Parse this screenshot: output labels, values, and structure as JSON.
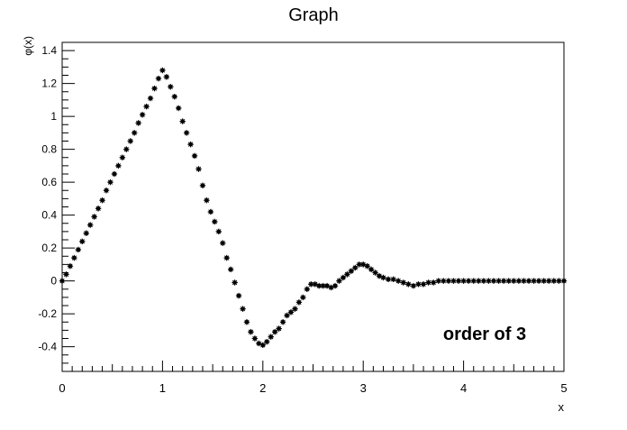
{
  "chart_data": {
    "type": "scatter",
    "title": "Graph",
    "xlabel": "x",
    "ylabel": "φ(x)",
    "xlim": [
      0,
      5
    ],
    "ylim": [
      -0.55,
      1.45
    ],
    "x_ticks": [
      0,
      1,
      2,
      3,
      4,
      5
    ],
    "x_tick_labels": [
      "0",
      "1",
      "2",
      "3",
      "4",
      "5"
    ],
    "y_ticks": [
      -0.4,
      -0.2,
      0,
      0.2,
      0.4,
      0.6,
      0.8,
      1,
      1.2,
      1.4
    ],
    "y_tick_labels": [
      "-0.4",
      "-0.2",
      "0",
      "0.2",
      "0.4",
      "0.6",
      "0.8",
      "1",
      "1.2",
      "1.4"
    ],
    "grid": false,
    "annotation": "order of 3",
    "marker_color": "#000000",
    "series": [
      {
        "points": [
          [
            0.0,
            0.0
          ],
          [
            0.04,
            0.04
          ],
          [
            0.08,
            0.09
          ],
          [
            0.12,
            0.14
          ],
          [
            0.16,
            0.19
          ],
          [
            0.2,
            0.24
          ],
          [
            0.24,
            0.29
          ],
          [
            0.28,
            0.34
          ],
          [
            0.32,
            0.39
          ],
          [
            0.36,
            0.44
          ],
          [
            0.4,
            0.49
          ],
          [
            0.44,
            0.55
          ],
          [
            0.48,
            0.6
          ],
          [
            0.52,
            0.65
          ],
          [
            0.56,
            0.7
          ],
          [
            0.6,
            0.75
          ],
          [
            0.64,
            0.8
          ],
          [
            0.68,
            0.85
          ],
          [
            0.72,
            0.9
          ],
          [
            0.76,
            0.96
          ],
          [
            0.8,
            1.01
          ],
          [
            0.84,
            1.06
          ],
          [
            0.88,
            1.11
          ],
          [
            0.92,
            1.17
          ],
          [
            0.96,
            1.23
          ],
          [
            1.0,
            1.28
          ],
          [
            1.04,
            1.24
          ],
          [
            1.08,
            1.18
          ],
          [
            1.12,
            1.12
          ],
          [
            1.16,
            1.05
          ],
          [
            1.2,
            0.97
          ],
          [
            1.24,
            0.9
          ],
          [
            1.28,
            0.83
          ],
          [
            1.32,
            0.76
          ],
          [
            1.36,
            0.68
          ],
          [
            1.4,
            0.58
          ],
          [
            1.44,
            0.49
          ],
          [
            1.48,
            0.42
          ],
          [
            1.52,
            0.36
          ],
          [
            1.56,
            0.3
          ],
          [
            1.6,
            0.23
          ],
          [
            1.64,
            0.14
          ],
          [
            1.68,
            0.07
          ],
          [
            1.72,
            -0.01
          ],
          [
            1.76,
            -0.09
          ],
          [
            1.8,
            -0.17
          ],
          [
            1.84,
            -0.25
          ],
          [
            1.88,
            -0.31
          ],
          [
            1.92,
            -0.35
          ],
          [
            1.96,
            -0.38
          ],
          [
            2.0,
            -0.39
          ],
          [
            2.04,
            -0.37
          ],
          [
            2.08,
            -0.34
          ],
          [
            2.12,
            -0.31
          ],
          [
            2.16,
            -0.29
          ],
          [
            2.2,
            -0.25
          ],
          [
            2.24,
            -0.21
          ],
          [
            2.28,
            -0.19
          ],
          [
            2.32,
            -0.17
          ],
          [
            2.36,
            -0.13
          ],
          [
            2.4,
            -0.1
          ],
          [
            2.44,
            -0.05
          ],
          [
            2.48,
            -0.02
          ],
          [
            2.52,
            -0.02
          ],
          [
            2.56,
            -0.03
          ],
          [
            2.6,
            -0.03
          ],
          [
            2.64,
            -0.03
          ],
          [
            2.68,
            -0.04
          ],
          [
            2.72,
            -0.03
          ],
          [
            2.76,
            0.0
          ],
          [
            2.8,
            0.02
          ],
          [
            2.84,
            0.04
          ],
          [
            2.88,
            0.06
          ],
          [
            2.92,
            0.08
          ],
          [
            2.96,
            0.1
          ],
          [
            3.0,
            0.1
          ],
          [
            3.04,
            0.09
          ],
          [
            3.08,
            0.07
          ],
          [
            3.12,
            0.05
          ],
          [
            3.16,
            0.03
          ],
          [
            3.2,
            0.02
          ],
          [
            3.25,
            0.01
          ],
          [
            3.3,
            0.01
          ],
          [
            3.35,
            0.0
          ],
          [
            3.4,
            -0.01
          ],
          [
            3.45,
            -0.02
          ],
          [
            3.5,
            -0.03
          ],
          [
            3.55,
            -0.02
          ],
          [
            3.6,
            -0.02
          ],
          [
            3.65,
            -0.01
          ],
          [
            3.7,
            -0.01
          ],
          [
            3.75,
            0.0
          ],
          [
            3.8,
            0.0
          ],
          [
            3.85,
            0.0
          ],
          [
            3.9,
            0.0
          ],
          [
            3.95,
            0.0
          ],
          [
            4.0,
            0.0
          ],
          [
            4.05,
            0.0
          ],
          [
            4.1,
            0.0
          ],
          [
            4.15,
            0.0
          ],
          [
            4.2,
            0.0
          ],
          [
            4.25,
            0.0
          ],
          [
            4.3,
            0.0
          ],
          [
            4.35,
            0.0
          ],
          [
            4.4,
            0.0
          ],
          [
            4.45,
            0.0
          ],
          [
            4.5,
            0.0
          ],
          [
            4.55,
            0.0
          ],
          [
            4.6,
            0.0
          ],
          [
            4.65,
            0.0
          ],
          [
            4.7,
            0.0
          ],
          [
            4.75,
            0.0
          ],
          [
            4.8,
            0.0
          ],
          [
            4.85,
            0.0
          ],
          [
            4.9,
            0.0
          ],
          [
            4.95,
            0.0
          ],
          [
            5.0,
            0.0
          ]
        ]
      }
    ]
  }
}
